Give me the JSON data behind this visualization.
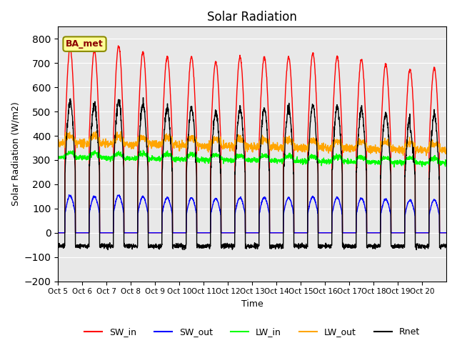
{
  "title": "Solar Radiation",
  "ylabel": "Solar Radiation (W/m2)",
  "xlabel": "Time",
  "ylim": [
    -200,
    850
  ],
  "yticks": [
    -200,
    -100,
    0,
    100,
    200,
    300,
    400,
    500,
    600,
    700,
    800
  ],
  "n_days": 16,
  "start_day": 5,
  "points_per_day": 144,
  "legend_label": "BA_met",
  "series": {
    "SW_in": {
      "color": "red",
      "linewidth": 1.0
    },
    "SW_out": {
      "color": "blue",
      "linewidth": 1.0
    },
    "LW_in": {
      "color": "lime",
      "linewidth": 1.0
    },
    "LW_out": {
      "color": "orange",
      "linewidth": 1.0
    },
    "Rnet": {
      "color": "black",
      "linewidth": 1.0
    }
  },
  "background_color": "#e8e8e8",
  "grid_color": "white",
  "sw_in_peaks": [
    760,
    750,
    770,
    745,
    725,
    725,
    705,
    725,
    725,
    725,
    740,
    725,
    715,
    695,
    675,
    680
  ],
  "xtick_labels": [
    "Oct 5",
    "Oct 6",
    "Oct 7",
    "Oct 8",
    "Oct 9",
    "Oct 10",
    "Oct 11",
    "Oct 12",
    "Oct 13",
    "Oct 14",
    "Oct 15",
    "Oct 16",
    "Oct 17",
    "Oct 18",
    "Oct 19",
    "Oct 20"
  ]
}
